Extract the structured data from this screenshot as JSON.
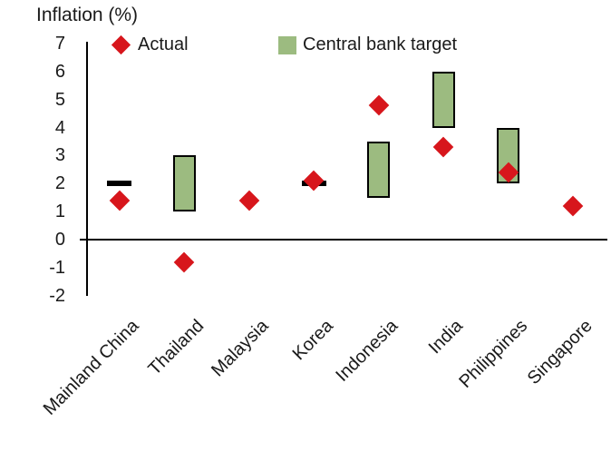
{
  "chart_title": "Inflation (%)",
  "legend": {
    "items": [
      {
        "label": "Actual",
        "marker": "diamond",
        "color": "#d7161c"
      },
      {
        "label": "Central bank target",
        "marker": "square",
        "color": "#9cbb80"
      }
    ]
  },
  "colors": {
    "actual": "#d7161c",
    "target_range": "#9cbb80",
    "target_range_border": "#000000",
    "point_target_dash": "#000000",
    "axis": "#000000",
    "text": "#1a1a1a",
    "background": "#ffffff"
  },
  "chart_data": {
    "type": "scatter",
    "title": "Inflation (%)",
    "categories": [
      "Mainland China",
      "Thailand",
      "Malaysia",
      "Korea",
      "Indonesia",
      "India",
      "Philippines",
      "Singapore"
    ],
    "series": [
      {
        "name": "Actual",
        "type": "scatter",
        "marker": "diamond",
        "color": "#d7161c",
        "values": [
          1.4,
          -0.8,
          1.4,
          2.1,
          4.8,
          3.3,
          2.4,
          1.2
        ]
      },
      {
        "name": "Central bank target",
        "type": "range_bar",
        "color": "#9cbb80",
        "border_color": "#000000",
        "ranges": [
          null,
          [
            1.0,
            3.0
          ],
          null,
          null,
          [
            1.5,
            3.5
          ],
          [
            4.0,
            6.0
          ],
          [
            2.0,
            4.0
          ],
          null
        ]
      },
      {
        "name": "Central bank target (point)",
        "type": "dash",
        "color": "#000000",
        "values": [
          2.0,
          null,
          null,
          2.0,
          null,
          null,
          null,
          null
        ]
      }
    ],
    "xlabel": "",
    "ylabel": "Inflation (%)",
    "y_ticks": [
      7,
      6,
      5,
      4,
      3,
      2,
      1,
      0,
      -1,
      -2
    ],
    "ylim": [
      -2,
      7
    ],
    "grid": false,
    "legend_position": "top"
  }
}
